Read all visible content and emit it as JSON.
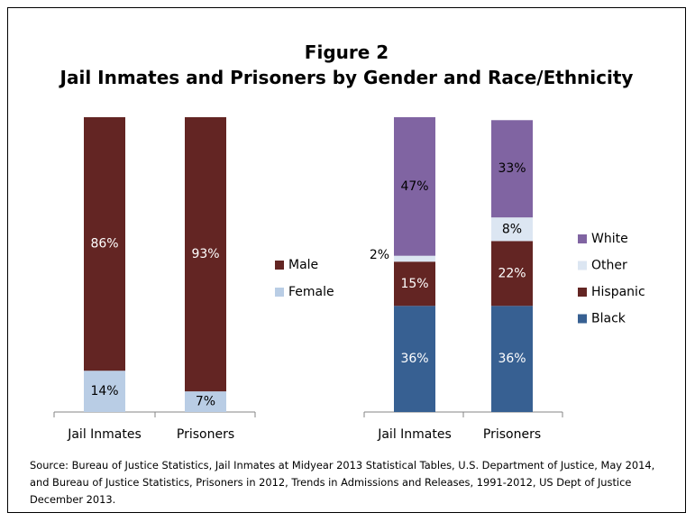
{
  "figure": {
    "label": "Figure 2",
    "title": "Jail Inmates and Prisoners by Gender and Race/Ethnicity",
    "source": "Source: Bureau of Justice Statistics, Jail Inmates at Midyear 2013 Statistical Tables, U.S. Department of Justice, May 2014, and Bureau of Justice Statistics, Prisoners in 2012, Trends in Admissions and Releases, 1991-2012, US Dept of Justice December 2013."
  },
  "chart_data": [
    {
      "type": "bar",
      "stacked": true,
      "title": "",
      "categories": [
        "Jail Inmates",
        "Prisoners"
      ],
      "series": [
        {
          "name": "Female",
          "values": [
            14,
            7
          ],
          "labels": [
            "14%",
            "7%"
          ],
          "color": "#b9cde5",
          "label_color": "#000000"
        },
        {
          "name": "Male",
          "values": [
            86,
            93
          ],
          "labels": [
            "86%",
            "93%"
          ],
          "color": "#632523",
          "label_color": "#ffffff"
        }
      ],
      "ylim": [
        0,
        100
      ],
      "grid": false,
      "legend_position": "right",
      "legend_order": [
        "Male",
        "Female"
      ]
    },
    {
      "type": "bar",
      "stacked": true,
      "title": "",
      "categories": [
        "Jail Inmates",
        "Prisoners"
      ],
      "series": [
        {
          "name": "Black",
          "values": [
            36,
            36
          ],
          "labels": [
            "36%",
            "36%"
          ],
          "color": "#376092",
          "label_color": "#ffffff"
        },
        {
          "name": "Hispanic",
          "values": [
            15,
            22
          ],
          "labels": [
            "15%",
            "22%"
          ],
          "color": "#632523",
          "label_color": "#ffffff"
        },
        {
          "name": "Other",
          "values": [
            2,
            8
          ],
          "labels": [
            "2%",
            "8%"
          ],
          "color": "#dce6f2",
          "label_color": "#000000"
        },
        {
          "name": "White",
          "values": [
            47,
            33
          ],
          "labels": [
            "47%",
            "33%"
          ],
          "color": "#8064a2",
          "label_color": "#000000"
        }
      ],
      "ylim": [
        0,
        100
      ],
      "grid": false,
      "legend_position": "right",
      "legend_order": [
        "White",
        "Other",
        "Hispanic",
        "Black"
      ]
    }
  ]
}
